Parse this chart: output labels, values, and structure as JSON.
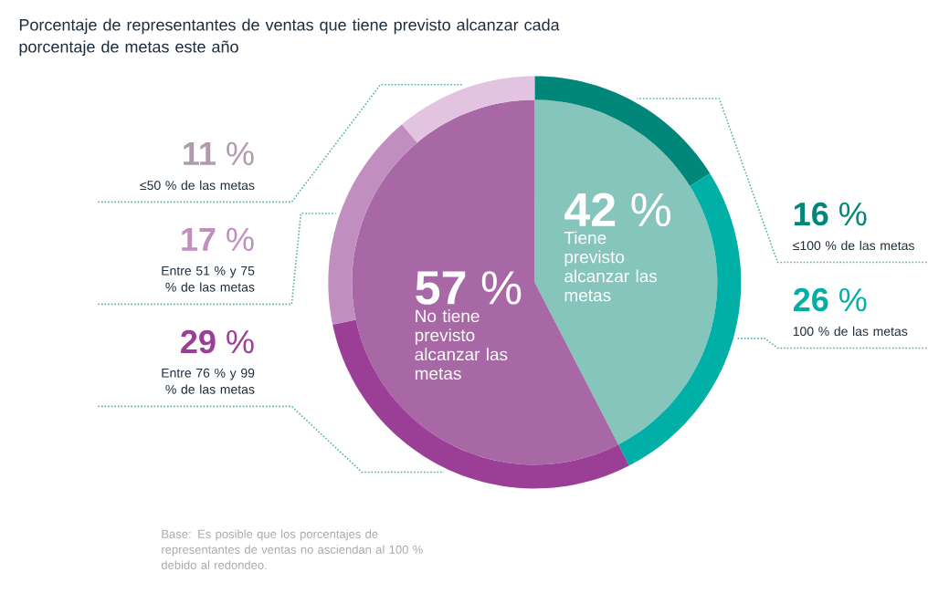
{
  "chart_data": [
    {
      "type": "pie",
      "title": "Porcentaje de representantes de ventas que tiene previsto alcanzar cada porcentaje de metas este año",
      "categories": [
        "Tiene previsto alcanzar las metas",
        "No tiene previsto alcanzar las metas"
      ],
      "values": [
        42,
        57
      ],
      "value_labels": [
        "**42** %",
        "**57** %"
      ],
      "colors": [
        "#86c5bb",
        "#a868a6"
      ],
      "annotations": [
        "Base: Es posible que los porcentajes de representantes de ventas no asciendan al 100 % debido al redondeo."
      ]
    },
    {
      "type": "donut",
      "categories": [
        "≤100 % de las metas",
        "100 % de las metas",
        "Entre 76 % y 99 % de las metas",
        "Entre 51 % y 75 % de las metas",
        "≤50 % de las metas"
      ],
      "values": [
        16,
        26,
        29,
        17,
        11
      ],
      "value_labels": [
        "**16** %",
        "**26** %",
        "**29** %",
        "**17** %",
        "**11** %"
      ],
      "colors": [
        "#00877a",
        "#00b0a6",
        "#9a3f95",
        "#c08fbf",
        "#e3c4e0"
      ]
    }
  ]
}
